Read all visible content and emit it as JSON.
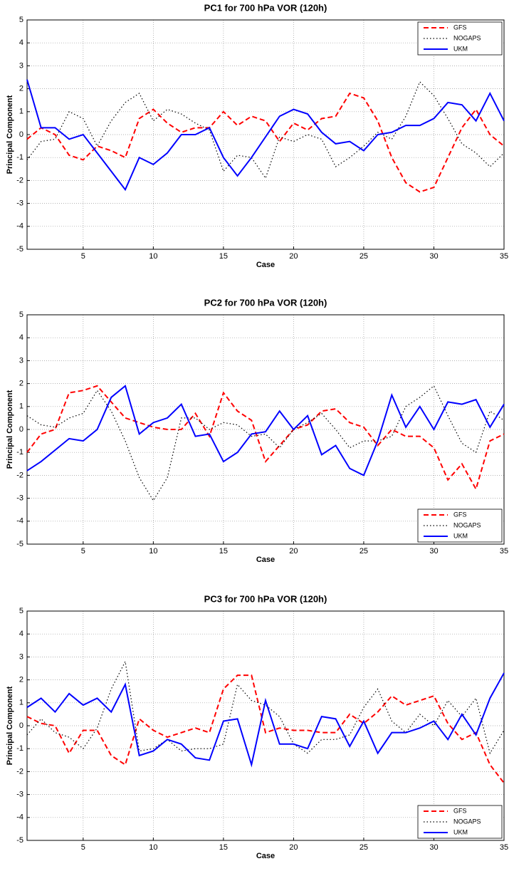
{
  "chart_data": [
    {
      "type": "line",
      "title": "PC1 for 700 hPa VOR (120h)",
      "xlabel": "Case",
      "ylabel": "Principal Component",
      "x": [
        1,
        2,
        3,
        4,
        5,
        6,
        7,
        8,
        9,
        10,
        11,
        12,
        13,
        14,
        15,
        16,
        17,
        18,
        19,
        20,
        21,
        22,
        23,
        24,
        25,
        26,
        27,
        28,
        29,
        30,
        31,
        32,
        33,
        34,
        35
      ],
      "xlim": [
        1,
        35
      ],
      "xticks": [
        5,
        10,
        15,
        20,
        25,
        30,
        35
      ],
      "ylim": [
        -5,
        5
      ],
      "yticks": [
        -5,
        -4,
        -3,
        -2,
        -1,
        0,
        1,
        2,
        3,
        4,
        5
      ],
      "grid": true,
      "legend": "upper right",
      "series": [
        {
          "name": "GFS",
          "color": "#ff0000",
          "linestyle": "dashed",
          "values": [
            -0.2,
            0.3,
            0,
            -0.9,
            -1.1,
            -0.5,
            -0.7,
            -1.0,
            0.7,
            1.1,
            0.5,
            0.1,
            0.3,
            0.3,
            1.0,
            0.4,
            0.8,
            0.6,
            -0.3,
            0.5,
            0.2,
            0.7,
            0.8,
            1.8,
            1.6,
            0.6,
            -1.0,
            -2.1,
            -2.5,
            -2.3,
            -1.0,
            0.3,
            1.1,
            0,
            -0.5
          ]
        },
        {
          "name": "NOGAPS",
          "color": "#000000",
          "linestyle": "dotted",
          "values": [
            -1.1,
            -0.3,
            -0.2,
            1.0,
            0.7,
            -0.5,
            0.6,
            1.4,
            1.8,
            0.6,
            1.1,
            0.9,
            0.5,
            0.2,
            -1.6,
            -0.9,
            -1.0,
            -1.9,
            -0.1,
            -0.3,
            0,
            -0.2,
            -1.4,
            -1.0,
            -0.5,
            0.1,
            -0.2,
            0.8,
            2.3,
            1.7,
            0.7,
            -0.4,
            -0.8,
            -1.4,
            -0.8
          ]
        },
        {
          "name": "UKM",
          "color": "#0000ff",
          "linestyle": "solid",
          "values": [
            2.4,
            0.3,
            0.3,
            -0.2,
            0,
            -0.8,
            -1.6,
            -2.4,
            -1.0,
            -1.3,
            -0.8,
            0,
            0,
            0.3,
            -1.0,
            -1.8,
            -1.0,
            -0.1,
            0.8,
            1.1,
            0.9,
            0.1,
            -0.4,
            -0.3,
            -0.7,
            0,
            0.1,
            0.4,
            0.4,
            0.7,
            1.4,
            1.3,
            0.6,
            1.8,
            0.6
          ]
        }
      ]
    },
    {
      "type": "line",
      "title": "PC2 for 700 hPa VOR (120h)",
      "xlabel": "Case",
      "ylabel": "Principal Component",
      "x": [
        1,
        2,
        3,
        4,
        5,
        6,
        7,
        8,
        9,
        10,
        11,
        12,
        13,
        14,
        15,
        16,
        17,
        18,
        19,
        20,
        21,
        22,
        23,
        24,
        25,
        26,
        27,
        28,
        29,
        30,
        31,
        32,
        33,
        34,
        35
      ],
      "xlim": [
        1,
        35
      ],
      "xticks": [
        5,
        10,
        15,
        20,
        25,
        30,
        35
      ],
      "ylim": [
        -5,
        5
      ],
      "yticks": [
        -5,
        -4,
        -3,
        -2,
        -1,
        0,
        1,
        2,
        3,
        4,
        5
      ],
      "grid": true,
      "legend": "lower right",
      "series": [
        {
          "name": "GFS",
          "color": "#ff0000",
          "linestyle": "dashed",
          "values": [
            -1.0,
            -0.2,
            0,
            1.6,
            1.7,
            1.9,
            1.2,
            0.5,
            0.3,
            0.1,
            0,
            0,
            0.7,
            -0.3,
            1.6,
            0.8,
            0.4,
            -1.4,
            -0.7,
            0,
            0.2,
            0.8,
            0.9,
            0.3,
            0.1,
            -0.7,
            0,
            -0.3,
            -0.3,
            -0.8,
            -2.2,
            -1.5,
            -2.6,
            -0.5,
            -0.2
          ]
        },
        {
          "name": "NOGAPS",
          "color": "#000000",
          "linestyle": "dotted",
          "values": [
            0.6,
            0.2,
            0.1,
            0.5,
            0.7,
            1.7,
            0.8,
            -0.5,
            -2.1,
            -3.1,
            -2.1,
            0.5,
            0.5,
            0,
            0.3,
            0.2,
            -0.3,
            -0.2,
            -0.8,
            0,
            0.3,
            0.7,
            0,
            -0.8,
            -0.5,
            -0.5,
            -0.3,
            1.0,
            1.4,
            1.9,
            0.6,
            -0.6,
            -1.0,
            0.8,
            0.4
          ]
        },
        {
          "name": "UKM",
          "color": "#0000ff",
          "linestyle": "solid",
          "values": [
            -1.8,
            -1.4,
            -0.9,
            -0.4,
            -0.5,
            0,
            1.4,
            1.9,
            -0.2,
            0.3,
            0.5,
            1.1,
            -0.3,
            -0.2,
            -1.4,
            -1.0,
            -0.2,
            -0.1,
            0.8,
            0,
            0.6,
            -1.1,
            -0.7,
            -1.7,
            -2.0,
            -0.5,
            1.5,
            0.1,
            1.0,
            0,
            1.2,
            1.1,
            1.3,
            0.1,
            1.1
          ]
        }
      ]
    },
    {
      "type": "line",
      "title": "PC3 for 700 hPa VOR (120h)",
      "xlabel": "Case",
      "ylabel": "Principal Component",
      "x": [
        1,
        2,
        3,
        4,
        5,
        6,
        7,
        8,
        9,
        10,
        11,
        12,
        13,
        14,
        15,
        16,
        17,
        18,
        19,
        20,
        21,
        22,
        23,
        24,
        25,
        26,
        27,
        28,
        29,
        30,
        31,
        32,
        33,
        34,
        35
      ],
      "xlim": [
        1,
        35
      ],
      "xticks": [
        5,
        10,
        15,
        20,
        25,
        30,
        35
      ],
      "ylim": [
        -5,
        5
      ],
      "yticks": [
        -5,
        -4,
        -3,
        -2,
        -1,
        0,
        1,
        2,
        3,
        4,
        5
      ],
      "grid": true,
      "legend": "lower right",
      "series": [
        {
          "name": "GFS",
          "color": "#ff0000",
          "linestyle": "dashed",
          "values": [
            0.4,
            0.1,
            0,
            -1.2,
            -0.2,
            -0.2,
            -1.3,
            -1.7,
            0.3,
            -0.2,
            -0.5,
            -0.3,
            -0.1,
            -0.3,
            1.6,
            2.2,
            2.2,
            -0.3,
            -0.1,
            -0.2,
            -0.2,
            -0.3,
            -0.3,
            0.5,
            0.1,
            0.6,
            1.3,
            0.9,
            1.1,
            1.3,
            0.1,
            -0.6,
            -0.3,
            -1.7,
            -2.5
          ]
        },
        {
          "name": "NOGAPS",
          "color": "#000000",
          "linestyle": "dotted",
          "values": [
            -0.4,
            0.3,
            -0.3,
            -0.5,
            -1.0,
            -0.1,
            1.6,
            2.8,
            -1.1,
            -1.0,
            -0.6,
            -1.1,
            -1.0,
            -1.0,
            -0.8,
            1.8,
            1.1,
            0.9,
            0.4,
            -0.8,
            -1.2,
            -0.6,
            -0.6,
            -0.4,
            0.8,
            1.6,
            0.2,
            -0.3,
            0.5,
            0,
            1.1,
            0.4,
            1.2,
            -1.2,
            -0.2
          ]
        },
        {
          "name": "UKM",
          "color": "#0000ff",
          "linestyle": "solid",
          "values": [
            0.8,
            1.2,
            0.6,
            1.4,
            0.9,
            1.2,
            0.6,
            1.8,
            -1.3,
            -1.1,
            -0.6,
            -0.8,
            -1.4,
            -1.5,
            0.2,
            0.3,
            -1.7,
            1.1,
            -0.8,
            -0.8,
            -1.0,
            0.4,
            0.3,
            -0.9,
            0.2,
            -1.2,
            -0.3,
            -0.3,
            -0.1,
            0.2,
            -0.6,
            0.5,
            -0.4,
            1.2,
            2.3
          ]
        }
      ]
    }
  ]
}
